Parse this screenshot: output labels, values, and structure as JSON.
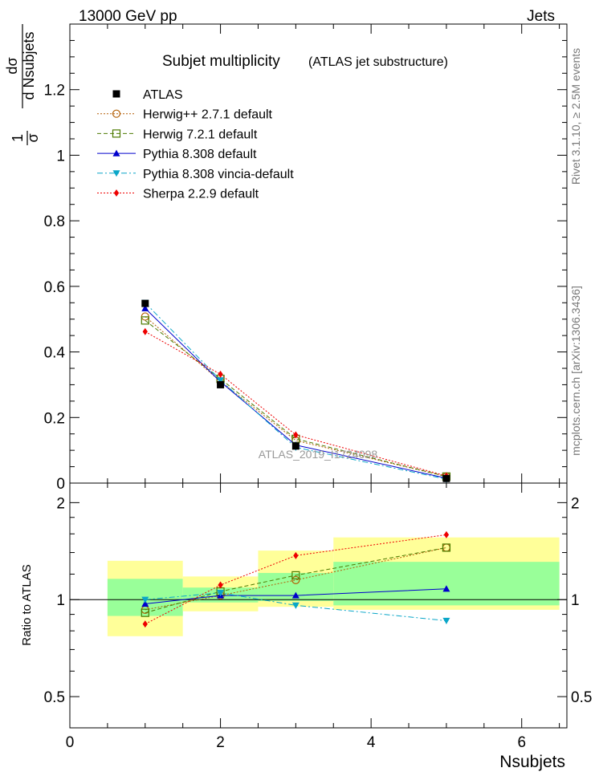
{
  "header": {
    "energy": "13000 GeV pp",
    "process": "Jets",
    "side_rivet": "Rivet 3.1.10, ≥ 2.5M events",
    "side_mcplots": "mcplots.cern.ch [arXiv:1306.3436]",
    "watermark": "ATLAS_2019_I1724098"
  },
  "chart_data": [
    {
      "type": "line",
      "title": "Subjet multiplicity",
      "subtitle": "(ATLAS jet substructure)",
      "ylabel_fraction": [
        "1",
        "σ",
        "dσ",
        "d Nsubjets"
      ],
      "ylim": [
        0,
        1.4
      ],
      "yticks": [
        0,
        0.2,
        0.4,
        0.6,
        0.8,
        1,
        1.2
      ],
      "ytick_labels": [
        "0",
        "0.2",
        "0.4",
        "0.6",
        "0.8",
        "1",
        "1.2"
      ],
      "xlim": [
        0,
        6.6
      ],
      "legend_placement": "top-left",
      "x": [
        1,
        2,
        3,
        5
      ],
      "series": [
        {
          "name": "ATLAS",
          "marker": "square-filled",
          "color": "#000000",
          "line": "none",
          "values": [
            0.548,
            0.3,
            0.113,
            0.014
          ]
        },
        {
          "name": "Herwig++ 2.7.1 default",
          "marker": "circle-open",
          "color": "#b45f06",
          "line": "dotted",
          "values": [
            0.508,
            0.31,
            0.13,
            0.02
          ]
        },
        {
          "name": "Herwig 7.2.1 default",
          "marker": "square-open",
          "color": "#4d7a00",
          "line": "dashed",
          "values": [
            0.496,
            0.318,
            0.135,
            0.02
          ]
        },
        {
          "name": "Pythia 8.308 default",
          "marker": "triangle-up",
          "color": "#0000cc",
          "line": "solid",
          "values": [
            0.533,
            0.309,
            0.116,
            0.015
          ]
        },
        {
          "name": "Pythia 8.308 vincia-default",
          "marker": "triangle-down",
          "color": "#0aa6c8",
          "line": "dashdot",
          "values": [
            0.55,
            0.314,
            0.109,
            0.012
          ]
        },
        {
          "name": "Sherpa 2.2.9 default",
          "marker": "diamond",
          "color": "#ee0000",
          "line": "dotted",
          "values": [
            0.462,
            0.332,
            0.147,
            0.022
          ]
        }
      ]
    },
    {
      "type": "line",
      "ylabel": "Ratio to ATLAS",
      "xlabel": "Nsubjets",
      "ylim": [
        0.4,
        2.3
      ],
      "yscale": "log",
      "yticks": [
        0.5,
        1,
        2
      ],
      "ytick_labels": [
        "0.5",
        "1",
        "2"
      ],
      "xlim": [
        0,
        6.6
      ],
      "xticks": [
        0,
        2,
        4,
        6
      ],
      "xtick_labels": [
        "0",
        "2",
        "4",
        "6"
      ],
      "reference": 1,
      "bands": [
        {
          "xmin": 0.5,
          "xmax": 1.5,
          "yellow": [
            0.77,
            1.32
          ],
          "green": [
            0.89,
            1.16
          ]
        },
        {
          "xmin": 1.5,
          "xmax": 2.5,
          "yellow": [
            0.92,
            1.18
          ],
          "green": [
            0.98,
            1.09
          ]
        },
        {
          "xmin": 2.5,
          "xmax": 3.5,
          "yellow": [
            0.95,
            1.42
          ],
          "green": [
            0.99,
            1.21
          ]
        },
        {
          "xmin": 3.5,
          "xmax": 6.5,
          "yellow": [
            0.93,
            1.56
          ],
          "green": [
            0.96,
            1.31
          ]
        }
      ],
      "x": [
        1,
        2,
        3,
        5
      ],
      "series": [
        {
          "name": "Herwig++ 2.7.1 default",
          "marker": "circle-open",
          "color": "#b45f06",
          "line": "dotted",
          "values": [
            0.93,
            1.03,
            1.15,
            1.45
          ]
        },
        {
          "name": "Herwig 7.2.1 default",
          "marker": "square-open",
          "color": "#4d7a00",
          "line": "dashed",
          "values": [
            0.91,
            1.06,
            1.19,
            1.45
          ]
        },
        {
          "name": "Pythia 8.308 default",
          "marker": "triangle-up",
          "color": "#0000cc",
          "line": "solid",
          "values": [
            0.97,
            1.03,
            1.03,
            1.08
          ]
        },
        {
          "name": "Pythia 8.308 vincia-default",
          "marker": "triangle-down",
          "color": "#0aa6c8",
          "line": "dashdot",
          "values": [
            1.0,
            1.05,
            0.96,
            0.86
          ]
        },
        {
          "name": "Sherpa 2.2.9 default",
          "marker": "diamond",
          "color": "#ee0000",
          "line": "dotted",
          "values": [
            0.84,
            1.11,
            1.37,
            1.59
          ]
        }
      ]
    }
  ]
}
